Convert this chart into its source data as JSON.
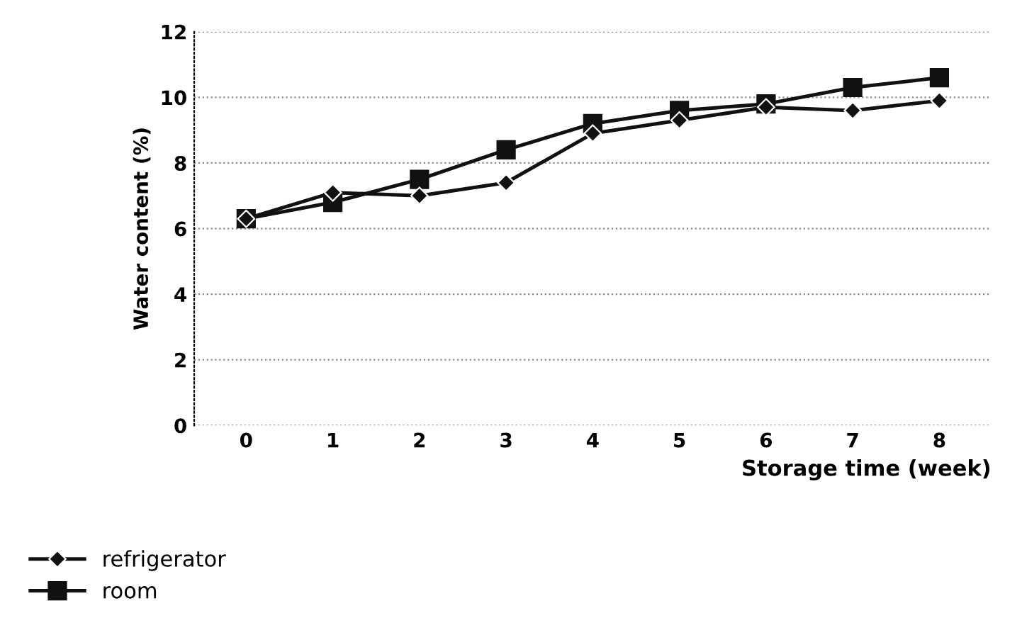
{
  "chart_data": {
    "type": "line",
    "xlabel": "Storage time (week)",
    "ylabel": "Water content (%)",
    "categories": [
      "0",
      "1",
      "2",
      "3",
      "4",
      "5",
      "6",
      "7",
      "8"
    ],
    "series": [
      {
        "name": "refrigerator",
        "color": "#111111",
        "marker": "diamond",
        "values": [
          6.3,
          7.1,
          7.0,
          7.4,
          8.9,
          9.3,
          9.7,
          9.6,
          9.9
        ]
      },
      {
        "name": "room",
        "color": "#111111",
        "marker": "square",
        "values": [
          6.3,
          6.8,
          7.5,
          8.4,
          9.2,
          9.6,
          9.8,
          10.3,
          10.6
        ]
      }
    ],
    "ylim": [
      0,
      12
    ],
    "yticks": [
      0,
      2,
      4,
      6,
      8,
      10,
      12
    ],
    "grid": "y",
    "legend": "bottom left",
    "line_style": "solid"
  }
}
